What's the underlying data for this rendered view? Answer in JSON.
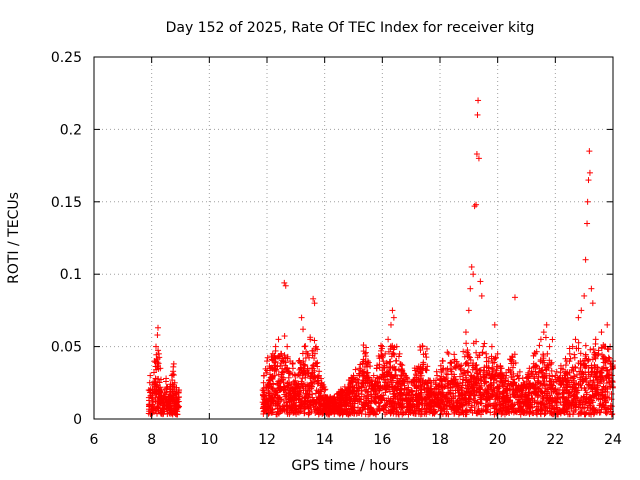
{
  "chart_data": {
    "type": "scatter",
    "title": "Day 152 of 2025, Rate Of TEC Index for receiver kitg",
    "xlabel": "GPS time / hours",
    "ylabel": "ROTI / TECUs",
    "xlim": [
      6,
      24
    ],
    "ylim": [
      0,
      0.25
    ],
    "xticks": [
      6,
      8,
      10,
      12,
      14,
      16,
      18,
      20,
      22,
      24
    ],
    "xtick_labels": [
      "6",
      "8",
      "10",
      "12",
      "14",
      "16",
      "18",
      "20",
      "22",
      "24"
    ],
    "yticks": [
      0,
      0.05,
      0.1,
      0.15,
      0.2,
      0.25
    ],
    "ytick_labels": [
      "0",
      "0.05",
      "0.1",
      "0.15",
      "0.2",
      "0.25"
    ],
    "grid": true,
    "marker": "plus",
    "color": "#ff0000",
    "series": [
      {
        "name": "ROTI",
        "points": [
          [
            7.9,
            0.02
          ],
          [
            7.95,
            0.03
          ],
          [
            8.0,
            0.015
          ],
          [
            8.05,
            0.025
          ],
          [
            8.1,
            0.04
          ],
          [
            8.15,
            0.05
          ],
          [
            8.2,
            0.058
          ],
          [
            8.22,
            0.063
          ],
          [
            8.25,
            0.045
          ],
          [
            8.3,
            0.035
          ],
          [
            8.35,
            0.02
          ],
          [
            8.4,
            0.012
          ],
          [
            8.45,
            0.018
          ],
          [
            8.5,
            0.028
          ],
          [
            8.55,
            0.022
          ],
          [
            8.6,
            0.015
          ],
          [
            8.65,
            0.024
          ],
          [
            8.7,
            0.03
          ],
          [
            8.75,
            0.036
          ],
          [
            8.8,
            0.025
          ],
          [
            8.85,
            0.018
          ],
          [
            8.9,
            0.012
          ],
          [
            8.95,
            0.02
          ],
          [
            11.85,
            0.02
          ],
          [
            11.9,
            0.03
          ],
          [
            12.0,
            0.04
          ],
          [
            12.1,
            0.035
          ],
          [
            12.2,
            0.045
          ],
          [
            12.3,
            0.05
          ],
          [
            12.4,
            0.055
          ],
          [
            12.5,
            0.045
          ],
          [
            12.6,
            0.094
          ],
          [
            12.65,
            0.092
          ],
          [
            12.7,
            0.05
          ],
          [
            12.8,
            0.04
          ],
          [
            12.9,
            0.035
          ],
          [
            13.0,
            0.03
          ],
          [
            13.1,
            0.04
          ],
          [
            13.2,
            0.07
          ],
          [
            13.25,
            0.062
          ],
          [
            13.3,
            0.05
          ],
          [
            13.4,
            0.045
          ],
          [
            13.5,
            0.055
          ],
          [
            13.6,
            0.083
          ],
          [
            13.65,
            0.08
          ],
          [
            13.7,
            0.05
          ],
          [
            13.8,
            0.03
          ],
          [
            13.9,
            0.025
          ],
          [
            14.0,
            0.02
          ],
          [
            14.1,
            0.015
          ],
          [
            14.3,
            0.012
          ],
          [
            14.5,
            0.018
          ],
          [
            14.7,
            0.02
          ],
          [
            14.9,
            0.025
          ],
          [
            15.0,
            0.03
          ],
          [
            15.2,
            0.035
          ],
          [
            15.4,
            0.045
          ],
          [
            15.5,
            0.04
          ],
          [
            15.7,
            0.03
          ],
          [
            15.9,
            0.042
          ],
          [
            16.0,
            0.05
          ],
          [
            16.1,
            0.045
          ],
          [
            16.2,
            0.055
          ],
          [
            16.3,
            0.065
          ],
          [
            16.35,
            0.075
          ],
          [
            16.4,
            0.07
          ],
          [
            16.5,
            0.05
          ],
          [
            16.6,
            0.045
          ],
          [
            16.8,
            0.03
          ],
          [
            17.0,
            0.025
          ],
          [
            17.2,
            0.035
          ],
          [
            17.4,
            0.05
          ],
          [
            17.5,
            0.045
          ],
          [
            17.7,
            0.025
          ],
          [
            17.9,
            0.03
          ],
          [
            18.1,
            0.04
          ],
          [
            18.3,
            0.045
          ],
          [
            18.5,
            0.04
          ],
          [
            18.7,
            0.035
          ],
          [
            18.9,
            0.06
          ],
          [
            19.0,
            0.075
          ],
          [
            19.05,
            0.09
          ],
          [
            19.1,
            0.105
          ],
          [
            19.15,
            0.1
          ],
          [
            19.2,
            0.147
          ],
          [
            19.25,
            0.148
          ],
          [
            19.28,
            0.183
          ],
          [
            19.3,
            0.21
          ],
          [
            19.32,
            0.22
          ],
          [
            19.35,
            0.18
          ],
          [
            19.4,
            0.095
          ],
          [
            19.45,
            0.085
          ],
          [
            19.5,
            0.05
          ],
          [
            19.6,
            0.045
          ],
          [
            19.7,
            0.035
          ],
          [
            19.8,
            0.05
          ],
          [
            19.9,
            0.065
          ],
          [
            20.0,
            0.045
          ],
          [
            20.1,
            0.035
          ],
          [
            20.3,
            0.03
          ],
          [
            20.5,
            0.04
          ],
          [
            20.6,
            0.084
          ],
          [
            20.7,
            0.03
          ],
          [
            20.9,
            0.025
          ],
          [
            21.1,
            0.035
          ],
          [
            21.3,
            0.045
          ],
          [
            21.5,
            0.055
          ],
          [
            21.6,
            0.06
          ],
          [
            21.7,
            0.065
          ],
          [
            21.8,
            0.05
          ],
          [
            22.0,
            0.03
          ],
          [
            22.2,
            0.035
          ],
          [
            22.4,
            0.04
          ],
          [
            22.5,
            0.045
          ],
          [
            22.6,
            0.05
          ],
          [
            22.7,
            0.055
          ],
          [
            22.8,
            0.07
          ],
          [
            22.9,
            0.075
          ],
          [
            23.0,
            0.085
          ],
          [
            23.05,
            0.11
          ],
          [
            23.1,
            0.135
          ],
          [
            23.12,
            0.15
          ],
          [
            23.15,
            0.165
          ],
          [
            23.18,
            0.185
          ],
          [
            23.2,
            0.17
          ],
          [
            23.25,
            0.09
          ],
          [
            23.3,
            0.08
          ],
          [
            23.4,
            0.055
          ],
          [
            23.5,
            0.045
          ],
          [
            23.6,
            0.06
          ],
          [
            23.7,
            0.05
          ],
          [
            23.8,
            0.065
          ],
          [
            23.9,
            0.05
          ],
          [
            24.0,
            0.04
          ]
        ]
      }
    ]
  }
}
